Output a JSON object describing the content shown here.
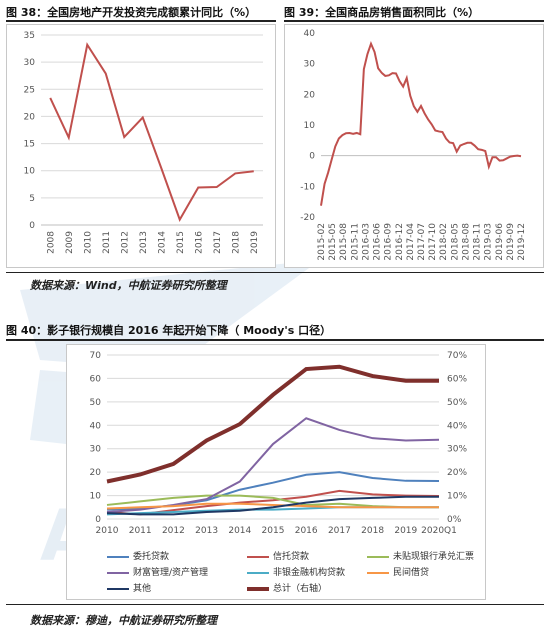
{
  "fig38": {
    "title": "图 38：全国房地产开发投资完成额累计同比（%）"
  },
  "fig39": {
    "title": "图 39：全国商品房销售面积同比（%）"
  },
  "source1": "数据来源：Wind，中航证券研究所整理",
  "fig40": {
    "title": "图 40：影子银行规模自 2016 年起开始下降（ Moody's 口径）"
  },
  "source2": "数据来源：穆迪，中航证券研究所整理",
  "watermark_text": "AVI",
  "colors": {
    "red_line": "#c0504d",
    "grid": "#d9d9d9"
  },
  "chart_data": [
    {
      "type": "line",
      "id": "fig38",
      "categories": [
        "2008",
        "2009",
        "2010",
        "2011",
        "2012",
        "2013",
        "2014",
        "2015",
        "2016",
        "2017",
        "2018",
        "2019"
      ],
      "series": [
        {
          "values": [
            23.4,
            16.1,
            33.2,
            27.9,
            16.2,
            19.8,
            10.5,
            1.0,
            6.9,
            7.0,
            9.5,
            9.9
          ],
          "color": "#c0504d"
        }
      ],
      "ylim": [
        0,
        35
      ],
      "yticks": [
        0,
        5,
        10,
        15,
        20,
        25,
        30,
        35
      ],
      "grid": "horizontal"
    },
    {
      "type": "line",
      "id": "fig39",
      "xtick_labels": [
        "2015-02",
        "2015-05",
        "2015-08",
        "2015-11",
        "2016-03",
        "2016-06",
        "2016-09",
        "2016-12",
        "2017-04",
        "2017-07",
        "2017-10",
        "2018-02",
        "2018-05",
        "2018-08",
        "2018-11",
        "2019-03",
        "2019-06",
        "2019-09",
        "2019-12"
      ],
      "series": [
        {
          "values": [
            -16.3,
            -9.2,
            -5.5,
            -1.2,
            3.0,
            5.6,
            6.7,
            7.3,
            7.4,
            7.1,
            7.4,
            7.0,
            28.2,
            33.1,
            36.5,
            33.8,
            28.5,
            27.0,
            26.0,
            26.2,
            26.9,
            26.8,
            24.3,
            22.5,
            25.3,
            19.5,
            16.1,
            14.3,
            16.2,
            13.8,
            11.8,
            10.2,
            8.2,
            7.9,
            7.7,
            5.6,
            4.3,
            4.1,
            1.3,
            3.3,
            3.8,
            4.2,
            4.2,
            3.3,
            2.1,
            1.9,
            1.5,
            -3.6,
            -0.5,
            -0.5,
            -1.6,
            -1.5,
            -0.9,
            -0.3,
            -0.1,
            0.0,
            -0.2
          ],
          "color": "#c0504d"
        }
      ],
      "ylim": [
        -20,
        40
      ],
      "yticks": [
        -20,
        -15,
        -10,
        -5,
        0,
        5,
        10,
        15,
        20,
        25,
        30,
        35,
        40
      ],
      "grid": "none"
    },
    {
      "type": "line",
      "id": "fig40",
      "categories": [
        "2010",
        "2011",
        "2012",
        "2013",
        "2014",
        "2015",
        "2016",
        "2017",
        "2018",
        "2019",
        "2020Q1"
      ],
      "ylim": [
        0,
        70
      ],
      "yticks": [
        0,
        10,
        20,
        30,
        40,
        50,
        60,
        70
      ],
      "y2lim": [
        0,
        70
      ],
      "y2ticks": [
        "0%",
        "10%",
        "20%",
        "30%",
        "40%",
        "50%",
        "60%",
        "70%"
      ],
      "series": [
        {
          "name": "委托贷款",
          "color": "#4f81bd",
          "values": [
            4.0,
            4.5,
            5.8,
            8.0,
            12.5,
            15.5,
            18.9,
            20.0,
            17.5,
            16.3,
            16.2
          ]
        },
        {
          "name": "信托贷款",
          "color": "#c0504d",
          "values": [
            3.0,
            2.0,
            3.8,
            5.5,
            7.0,
            8.0,
            9.5,
            12.0,
            10.5,
            10.0,
            9.8
          ]
        },
        {
          "name": "未贴现银行承兑汇票",
          "color": "#9bbb59",
          "values": [
            6.0,
            7.5,
            9.0,
            10.0,
            10.0,
            9.0,
            6.0,
            6.5,
            5.5,
            5.0,
            5.0
          ]
        },
        {
          "name": "财富管理/资产管理",
          "color": "#8064a2",
          "values": [
            3.0,
            4.0,
            6.0,
            8.5,
            16.0,
            32.0,
            43.0,
            38.0,
            34.5,
            33.5,
            33.8
          ]
        },
        {
          "name": "非银金融机构贷款",
          "color": "#4bacc6",
          "values": [
            2.0,
            2.5,
            3.0,
            3.5,
            4.0,
            4.0,
            4.5,
            5.0,
            5.0,
            5.0,
            5.0
          ]
        },
        {
          "name": "民间借贷",
          "color": "#f79646",
          "values": [
            4.5,
            5.0,
            5.5,
            6.5,
            6.5,
            6.0,
            5.5,
            5.0,
            5.0,
            5.0,
            5.0
          ]
        },
        {
          "name": "其他",
          "color": "#1f3864",
          "values": [
            2.5,
            2.0,
            2.0,
            3.0,
            3.5,
            5.0,
            7.0,
            8.5,
            9.0,
            9.5,
            9.5
          ]
        },
        {
          "name": "总计（右轴）",
          "color": "#7f2f2c",
          "axis": "right",
          "thick": true,
          "values": [
            16.0,
            19.0,
            23.5,
            33.5,
            40.5,
            53.0,
            64.0,
            65.0,
            61.0,
            59.0,
            59.0
          ]
        }
      ]
    }
  ]
}
